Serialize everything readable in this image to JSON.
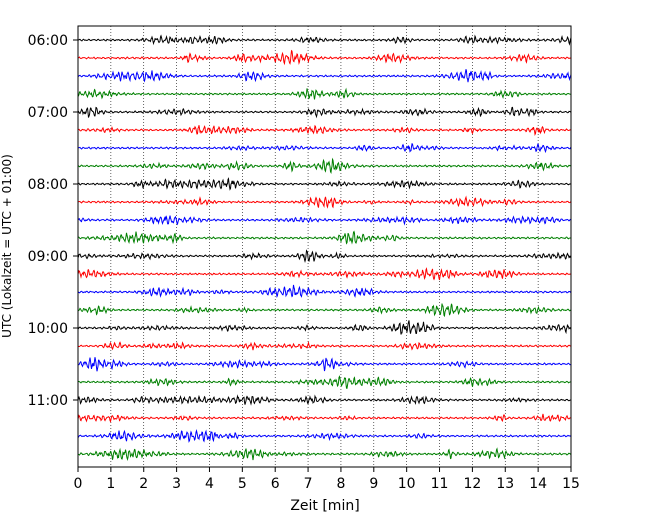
{
  "chart_data": {
    "type": "line",
    "title": "",
    "xlabel": "Zeit  [min]",
    "ylabel": "UTC (Lokalzeit = UTC + 01:00)",
    "xlim": [
      0,
      15
    ],
    "x_ticks": [
      "0",
      "1",
      "2",
      "3",
      "4",
      "5",
      "6",
      "7",
      "8",
      "9",
      "10",
      "11",
      "12",
      "13",
      "14",
      "15"
    ],
    "y_ticks": [
      "06:00",
      "07:00",
      "08:00",
      "09:00",
      "10:00",
      "11:00"
    ],
    "grid": "vertical dotted at each minute",
    "line_colors": [
      "#000000",
      "#ff0000",
      "#0000ff",
      "#008000"
    ],
    "traces_per_hour": 4,
    "series": [
      {
        "start": "06:00",
        "color": "#000000"
      },
      {
        "start": "06:15",
        "color": "#ff0000"
      },
      {
        "start": "06:30",
        "color": "#0000ff"
      },
      {
        "start": "06:45",
        "color": "#008000"
      },
      {
        "start": "07:00",
        "color": "#000000"
      },
      {
        "start": "07:15",
        "color": "#ff0000"
      },
      {
        "start": "07:30",
        "color": "#0000ff"
      },
      {
        "start": "07:45",
        "color": "#008000"
      },
      {
        "start": "08:00",
        "color": "#000000"
      },
      {
        "start": "08:15",
        "color": "#ff0000"
      },
      {
        "start": "08:30",
        "color": "#0000ff"
      },
      {
        "start": "08:45",
        "color": "#008000"
      },
      {
        "start": "09:00",
        "color": "#000000"
      },
      {
        "start": "09:15",
        "color": "#ff0000"
      },
      {
        "start": "09:30",
        "color": "#0000ff"
      },
      {
        "start": "09:45",
        "color": "#008000"
      },
      {
        "start": "10:00",
        "color": "#000000"
      },
      {
        "start": "10:15",
        "color": "#ff0000"
      },
      {
        "start": "10:30",
        "color": "#0000ff"
      },
      {
        "start": "10:45",
        "color": "#008000"
      },
      {
        "start": "11:00",
        "color": "#000000"
      },
      {
        "start": "11:15",
        "color": "#ff0000"
      },
      {
        "start": "11:30",
        "color": "#0000ff"
      },
      {
        "start": "11:45",
        "color": "#008000"
      }
    ]
  }
}
